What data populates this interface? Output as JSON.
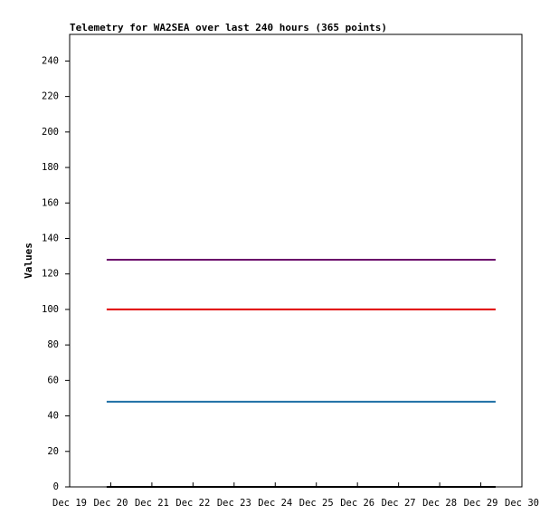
{
  "chart_data": {
    "type": "line",
    "title": "Telemetry for WA2SEA over last 240 hours (365 points)",
    "y_label": "Values",
    "x": [
      0.9,
      10.36
    ],
    "series": [
      {
        "color": "#6a0a6a",
        "values": [
          128,
          128
        ]
      },
      {
        "color": "#e00000",
        "values": [
          100,
          100
        ]
      },
      {
        "color": "#1d6fa5",
        "values": [
          48,
          48
        ]
      },
      {
        "color": "#000000",
        "values": [
          0,
          0
        ]
      }
    ],
    "xlim": [
      0,
      11
    ],
    "xticks": [
      {
        "value": 0,
        "label": "Dec 19"
      },
      {
        "value": 1,
        "label": "Dec 20"
      },
      {
        "value": 2,
        "label": "Dec 21"
      },
      {
        "value": 3,
        "label": "Dec 22"
      },
      {
        "value": 4,
        "label": "Dec 23"
      },
      {
        "value": 5,
        "label": "Dec 24"
      },
      {
        "value": 6,
        "label": "Dec 25"
      },
      {
        "value": 7,
        "label": "Dec 26"
      },
      {
        "value": 8,
        "label": "Dec 27"
      },
      {
        "value": 9,
        "label": "Dec 28"
      },
      {
        "value": 10,
        "label": "Dec 29"
      },
      {
        "value": 11,
        "label": "Dec 30"
      }
    ],
    "ylim": [
      0,
      255
    ],
    "yticks": [
      0,
      20,
      40,
      60,
      80,
      100,
      120,
      140,
      160,
      180,
      200,
      220,
      240
    ]
  }
}
